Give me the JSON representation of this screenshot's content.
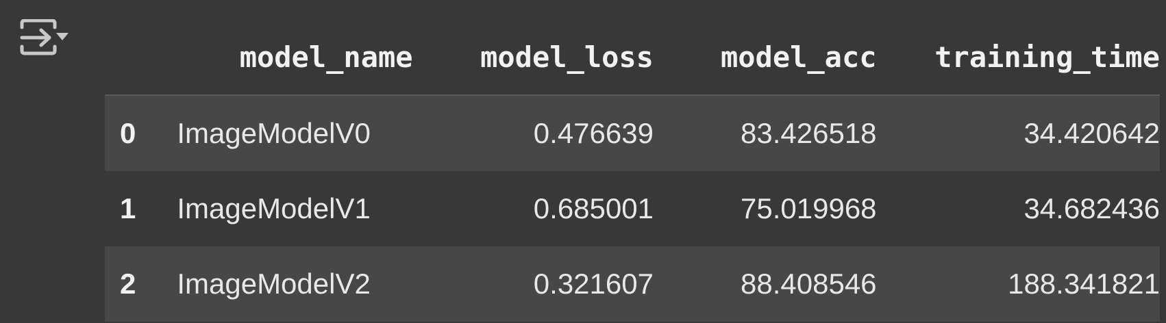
{
  "output": {
    "toggle_icon": "output-collapse-icon"
  },
  "table": {
    "columns": [
      "",
      "model_name",
      "model_loss",
      "model_acc",
      "training_time"
    ],
    "rows": [
      {
        "index": "0",
        "model_name": "ImageModelV0",
        "model_loss": "0.476639",
        "model_acc": "83.426518",
        "training_time": "34.420642"
      },
      {
        "index": "1",
        "model_name": "ImageModelV1",
        "model_loss": "0.685001",
        "model_acc": "75.019968",
        "training_time": "34.682436"
      },
      {
        "index": "2",
        "model_name": "ImageModelV2",
        "model_loss": "0.321607",
        "model_acc": "88.408546",
        "training_time": "188.341821"
      }
    ]
  },
  "colors": {
    "background": "#383838",
    "row_striped": "#474747",
    "text": "#e8e8e8",
    "icon": "#c8c8c8"
  }
}
